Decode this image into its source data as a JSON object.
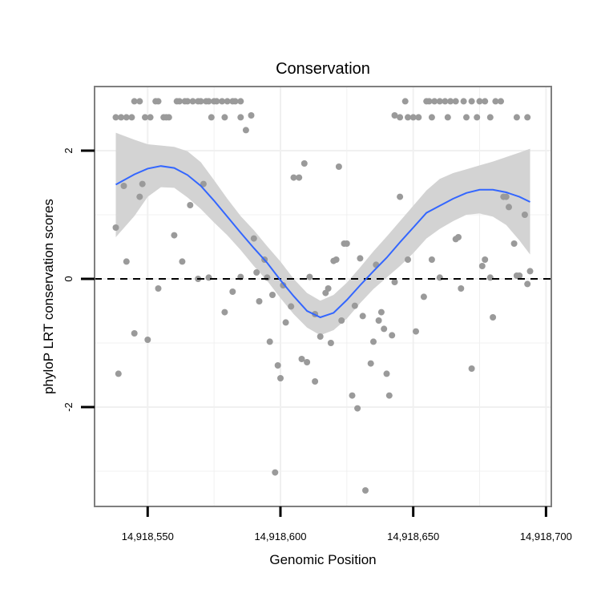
{
  "chart_data": {
    "type": "scatter",
    "title": "Conservation",
    "xlabel": "Genomic Position",
    "ylabel": "phyloP LRT conservation scores",
    "xlim": [
      14918530,
      14918702
    ],
    "ylim": [
      -3.55,
      3.0
    ],
    "x_ticks": [
      14918550,
      14918600,
      14918650,
      14918700
    ],
    "x_tick_labels": [
      "14,918,550",
      "14,918,600",
      "14,918,650",
      "14,918,700"
    ],
    "y_ticks": [
      2,
      0,
      -2
    ],
    "y_tick_labels": [
      "2",
      "0",
      "-2"
    ],
    "reference_line": {
      "y": 0,
      "style": "dashed"
    },
    "grid": true,
    "colors": {
      "points": "#9a9a9a",
      "smooth": "#3366ff",
      "ribbon": "#d3d3d3",
      "panel_border": "#7f7f7f",
      "grid": "#f0f0f0"
    },
    "points": [
      [
        14918538,
        2.52
      ],
      [
        14918540,
        2.52
      ],
      [
        14918542,
        2.52
      ],
      [
        14918544,
        2.52
      ],
      [
        14918545,
        2.77
      ],
      [
        14918547,
        2.77
      ],
      [
        14918549,
        2.52
      ],
      [
        14918551,
        2.52
      ],
      [
        14918553,
        2.77
      ],
      [
        14918554,
        2.77
      ],
      [
        14918556,
        2.52
      ],
      [
        14918557,
        2.52
      ],
      [
        14918558,
        2.52
      ],
      [
        14918561,
        2.77
      ],
      [
        14918562,
        2.77
      ],
      [
        14918564,
        2.77
      ],
      [
        14918565,
        2.77
      ],
      [
        14918567,
        2.77
      ],
      [
        14918569,
        2.77
      ],
      [
        14918570,
        2.77
      ],
      [
        14918572,
        2.77
      ],
      [
        14918573,
        2.77
      ],
      [
        14918575,
        2.77
      ],
      [
        14918576,
        2.77
      ],
      [
        14918574,
        2.52
      ],
      [
        14918578,
        2.77
      ],
      [
        14918579,
        2.52
      ],
      [
        14918580,
        2.77
      ],
      [
        14918582,
        2.77
      ],
      [
        14918583,
        2.77
      ],
      [
        14918585,
        2.77
      ],
      [
        14918585,
        2.52
      ],
      [
        14918587,
        2.32
      ],
      [
        14918589,
        2.55
      ],
      [
        14918643,
        2.55
      ],
      [
        14918645,
        2.52
      ],
      [
        14918647,
        2.77
      ],
      [
        14918648,
        2.52
      ],
      [
        14918650,
        2.52
      ],
      [
        14918652,
        2.52
      ],
      [
        14918655,
        2.77
      ],
      [
        14918656,
        2.77
      ],
      [
        14918657,
        2.52
      ],
      [
        14918658,
        2.77
      ],
      [
        14918660,
        2.77
      ],
      [
        14918662,
        2.77
      ],
      [
        14918663,
        2.52
      ],
      [
        14918664,
        2.77
      ],
      [
        14918666,
        2.77
      ],
      [
        14918669,
        2.77
      ],
      [
        14918670,
        2.52
      ],
      [
        14918672,
        2.77
      ],
      [
        14918674,
        2.52
      ],
      [
        14918675,
        2.77
      ],
      [
        14918677,
        2.77
      ],
      [
        14918679,
        2.52
      ],
      [
        14918681,
        2.77
      ],
      [
        14918683,
        2.77
      ],
      [
        14918689,
        2.52
      ],
      [
        14918693,
        2.52
      ],
      [
        14918538,
        0.8
      ],
      [
        14918539,
        -1.48
      ],
      [
        14918541,
        1.45
      ],
      [
        14918542,
        0.27
      ],
      [
        14918545,
        -0.85
      ],
      [
        14918547,
        1.28
      ],
      [
        14918548,
        1.48
      ],
      [
        14918550,
        -0.95
      ],
      [
        14918554,
        -0.15
      ],
      [
        14918560,
        0.68
      ],
      [
        14918563,
        0.27
      ],
      [
        14918566,
        1.15
      ],
      [
        14918569,
        0.0
      ],
      [
        14918571,
        1.48
      ],
      [
        14918573,
        0.02
      ],
      [
        14918579,
        -0.52
      ],
      [
        14918582,
        -0.2
      ],
      [
        14918585,
        0.03
      ],
      [
        14918590,
        0.63
      ],
      [
        14918591,
        0.1
      ],
      [
        14918592,
        -0.35
      ],
      [
        14918594,
        0.3
      ],
      [
        14918595,
        0.02
      ],
      [
        14918596,
        -0.98
      ],
      [
        14918597,
        -0.25
      ],
      [
        14918598,
        -3.02
      ],
      [
        14918599,
        -1.35
      ],
      [
        14918600,
        -1.55
      ],
      [
        14918601,
        -0.1
      ],
      [
        14918602,
        -0.68
      ],
      [
        14918604,
        -0.43
      ],
      [
        14918605,
        1.58
      ],
      [
        14918607,
        1.58
      ],
      [
        14918608,
        -1.25
      ],
      [
        14918609,
        1.8
      ],
      [
        14918610,
        -1.3
      ],
      [
        14918611,
        0.03
      ],
      [
        14918613,
        -1.6
      ],
      [
        14918613,
        -0.55
      ],
      [
        14918615,
        -0.9
      ],
      [
        14918617,
        -0.22
      ],
      [
        14918618,
        -0.15
      ],
      [
        14918619,
        -1.0
      ],
      [
        14918620,
        0.28
      ],
      [
        14918621,
        0.3
      ],
      [
        14918622,
        1.75
      ],
      [
        14918623,
        -0.65
      ],
      [
        14918624,
        0.55
      ],
      [
        14918625,
        0.55
      ],
      [
        14918627,
        -1.82
      ],
      [
        14918628,
        -0.42
      ],
      [
        14918629,
        -2.02
      ],
      [
        14918630,
        0.32
      ],
      [
        14918631,
        -0.58
      ],
      [
        14918632,
        -3.3
      ],
      [
        14918634,
        -1.32
      ],
      [
        14918635,
        -0.98
      ],
      [
        14918636,
        0.22
      ],
      [
        14918637,
        -0.65
      ],
      [
        14918638,
        -0.52
      ],
      [
        14918639,
        -0.78
      ],
      [
        14918640,
        -1.48
      ],
      [
        14918641,
        -1.82
      ],
      [
        14918642,
        -0.88
      ],
      [
        14918643,
        -0.05
      ],
      [
        14918645,
        1.28
      ],
      [
        14918648,
        0.3
      ],
      [
        14918651,
        -0.82
      ],
      [
        14918654,
        -0.28
      ],
      [
        14918657,
        0.3
      ],
      [
        14918660,
        0.02
      ],
      [
        14918666,
        0.62
      ],
      [
        14918667,
        0.65
      ],
      [
        14918668,
        -0.15
      ],
      [
        14918672,
        -1.4
      ],
      [
        14918676,
        0.2
      ],
      [
        14918677,
        0.3
      ],
      [
        14918679,
        0.02
      ],
      [
        14918680,
        -0.6
      ],
      [
        14918684,
        1.28
      ],
      [
        14918685,
        1.28
      ],
      [
        14918686,
        1.12
      ],
      [
        14918688,
        0.55
      ],
      [
        14918689,
        0.05
      ],
      [
        14918690,
        0.05
      ],
      [
        14918692,
        1.0
      ],
      [
        14918693,
        -0.08
      ],
      [
        14918694,
        0.12
      ]
    ],
    "smooth": [
      [
        14918538,
        1.47
      ],
      [
        14918545,
        1.63
      ],
      [
        14918550,
        1.72
      ],
      [
        14918555,
        1.76
      ],
      [
        14918560,
        1.73
      ],
      [
        14918565,
        1.62
      ],
      [
        14918570,
        1.45
      ],
      [
        14918575,
        1.22
      ],
      [
        14918580,
        0.97
      ],
      [
        14918585,
        0.72
      ],
      [
        14918590,
        0.48
      ],
      [
        14918595,
        0.25
      ],
      [
        14918600,
        -0.02
      ],
      [
        14918605,
        -0.27
      ],
      [
        14918610,
        -0.5
      ],
      [
        14918615,
        -0.6
      ],
      [
        14918620,
        -0.53
      ],
      [
        14918625,
        -0.33
      ],
      [
        14918630,
        -0.1
      ],
      [
        14918635,
        0.12
      ],
      [
        14918640,
        0.33
      ],
      [
        14918645,
        0.57
      ],
      [
        14918650,
        0.8
      ],
      [
        14918655,
        1.03
      ],
      [
        14918660,
        1.14
      ],
      [
        14918665,
        1.25
      ],
      [
        14918670,
        1.34
      ],
      [
        14918675,
        1.39
      ],
      [
        14918680,
        1.39
      ],
      [
        14918685,
        1.35
      ],
      [
        14918690,
        1.28
      ],
      [
        14918694,
        1.2
      ]
    ],
    "ribbon_upper": [
      [
        14918538,
        2.28
      ],
      [
        14918545,
        2.17
      ],
      [
        14918550,
        2.1
      ],
      [
        14918555,
        2.08
      ],
      [
        14918560,
        2.06
      ],
      [
        14918565,
        1.99
      ],
      [
        14918570,
        1.82
      ],
      [
        14918575,
        1.54
      ],
      [
        14918580,
        1.25
      ],
      [
        14918585,
        0.98
      ],
      [
        14918590,
        0.76
      ],
      [
        14918595,
        0.51
      ],
      [
        14918600,
        0.27
      ],
      [
        14918605,
        0.0
      ],
      [
        14918610,
        -0.22
      ],
      [
        14918615,
        -0.34
      ],
      [
        14918620,
        -0.25
      ],
      [
        14918625,
        -0.06
      ],
      [
        14918630,
        0.18
      ],
      [
        14918635,
        0.43
      ],
      [
        14918640,
        0.66
      ],
      [
        14918645,
        0.9
      ],
      [
        14918650,
        1.14
      ],
      [
        14918655,
        1.38
      ],
      [
        14918660,
        1.56
      ],
      [
        14918665,
        1.65
      ],
      [
        14918670,
        1.71
      ],
      [
        14918675,
        1.77
      ],
      [
        14918680,
        1.83
      ],
      [
        14918685,
        1.9
      ],
      [
        14918690,
        1.97
      ],
      [
        14918694,
        2.03
      ]
    ],
    "ribbon_lower": [
      [
        14918538,
        0.65
      ],
      [
        14918545,
        0.98
      ],
      [
        14918550,
        1.28
      ],
      [
        14918555,
        1.43
      ],
      [
        14918560,
        1.42
      ],
      [
        14918565,
        1.27
      ],
      [
        14918570,
        1.09
      ],
      [
        14918575,
        0.88
      ],
      [
        14918580,
        0.68
      ],
      [
        14918585,
        0.45
      ],
      [
        14918590,
        0.2
      ],
      [
        14918595,
        -0.03
      ],
      [
        14918600,
        -0.3
      ],
      [
        14918605,
        -0.55
      ],
      [
        14918610,
        -0.76
      ],
      [
        14918615,
        -0.88
      ],
      [
        14918620,
        -0.8
      ],
      [
        14918625,
        -0.62
      ],
      [
        14918630,
        -0.38
      ],
      [
        14918635,
        -0.16
      ],
      [
        14918640,
        0.02
      ],
      [
        14918645,
        0.2
      ],
      [
        14918650,
        0.4
      ],
      [
        14918655,
        0.63
      ],
      [
        14918660,
        0.78
      ],
      [
        14918665,
        0.9
      ],
      [
        14918670,
        1.0
      ],
      [
        14918675,
        1.02
      ],
      [
        14918680,
        0.97
      ],
      [
        14918685,
        0.84
      ],
      [
        14918690,
        0.6
      ],
      [
        14918694,
        0.38
      ]
    ]
  }
}
